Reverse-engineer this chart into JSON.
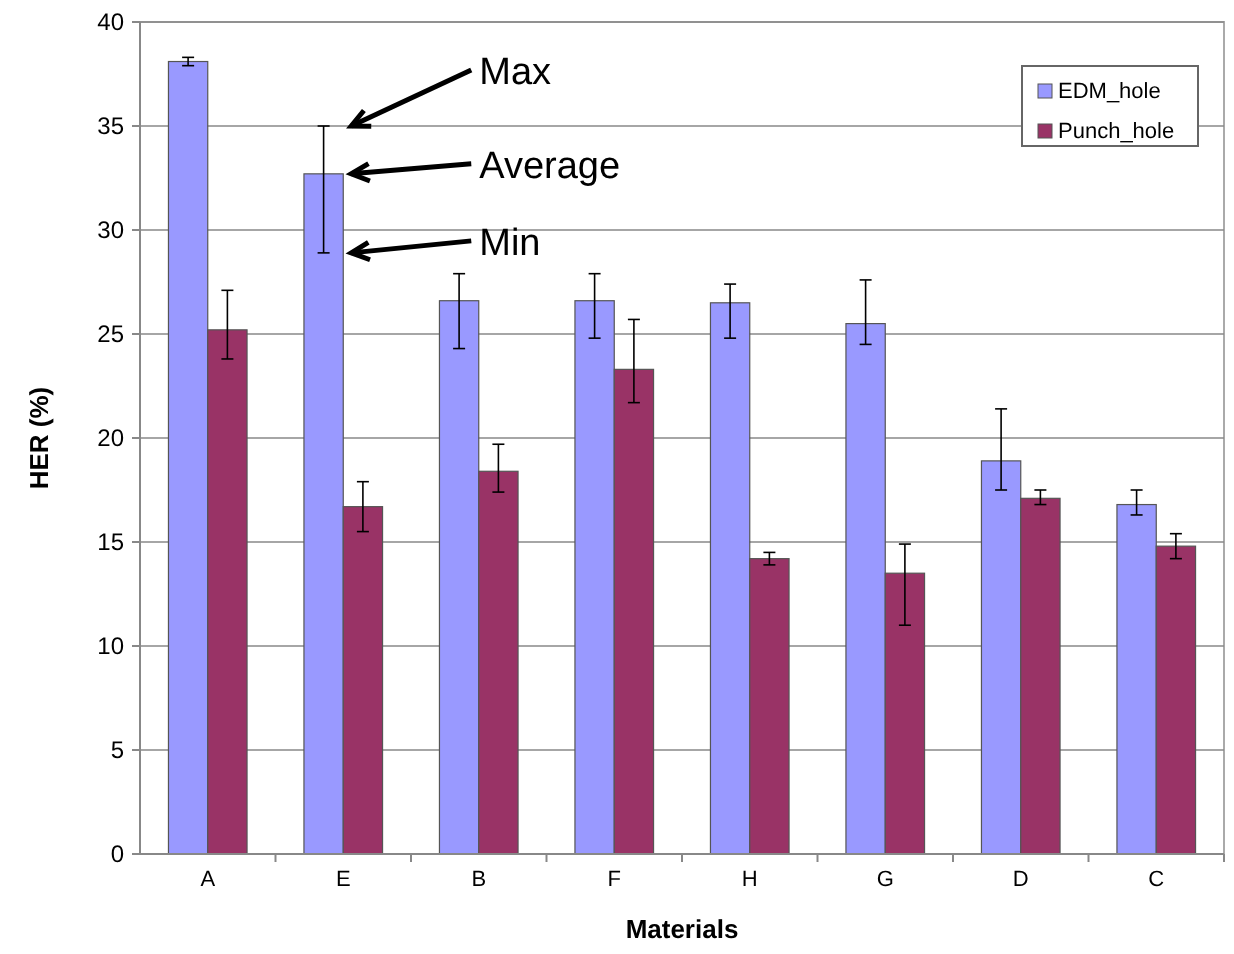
{
  "chart_data": {
    "type": "bar",
    "xlabel": "Materials",
    "ylabel": "HER (%)",
    "categories": [
      "A",
      "E",
      "B",
      "F",
      "H",
      "G",
      "D",
      "C"
    ],
    "series": [
      {
        "name": "EDM_hole",
        "color": "#9999ff",
        "values": [
          38.1,
          32.7,
          26.6,
          26.6,
          26.5,
          25.5,
          18.9,
          16.8
        ],
        "errors": [
          [
            37.9,
            38.3
          ],
          [
            28.9,
            35
          ],
          [
            24.3,
            27.9
          ],
          [
            24.8,
            27.9
          ],
          [
            24.8,
            27.4
          ],
          [
            24.5,
            27.6
          ],
          [
            17.5,
            21.4
          ],
          [
            16.3,
            17.5
          ]
        ]
      },
      {
        "name": "Punch_hole",
        "color": "#993366",
        "values": [
          25.2,
          16.7,
          18.4,
          23.3,
          14.2,
          13.5,
          17.1,
          14.8
        ],
        "errors": [
          [
            23.8,
            27.1
          ],
          [
            15.5,
            17.9
          ],
          [
            17.4,
            19.7
          ],
          [
            21.7,
            25.7
          ],
          [
            13.9,
            14.5
          ],
          [
            11,
            14.9
          ],
          [
            16.8,
            17.5
          ],
          [
            14.2,
            15.4
          ]
        ]
      }
    ],
    "ylim": [
      0,
      40
    ],
    "yticks": [
      0,
      5,
      10,
      15,
      20,
      25,
      30,
      35,
      40
    ],
    "grid": "y",
    "legend": "top right",
    "annotations": [
      "Max",
      {
        "text": "Average",
        "x": "E",
        "y": 32.7
      },
      {
        "text": "Min",
        "x": "E",
        "y": 28.9
      }
    ]
  }
}
